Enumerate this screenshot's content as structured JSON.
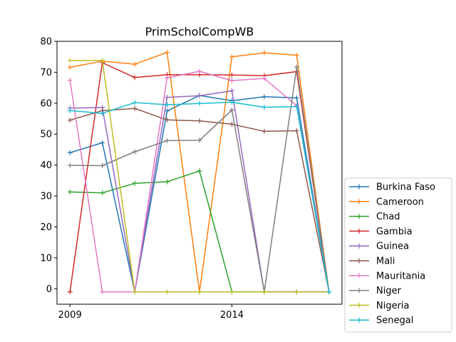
{
  "chart_data": {
    "type": "line",
    "title": "PrimScholCompWB",
    "xlabel": "",
    "ylabel": "",
    "x": [
      2009,
      2010,
      2011,
      2012,
      2013,
      2014,
      2015,
      2016,
      2017
    ],
    "xlim": [
      2008.6,
      2017.4
    ],
    "ylim": [
      -5,
      80
    ],
    "xticks": [
      2009,
      2014
    ],
    "yticks": [
      0,
      10,
      20,
      30,
      40,
      50,
      60,
      70,
      80
    ],
    "grid": false,
    "legend_position": "outside-right-bottom",
    "marker": "+",
    "series": [
      {
        "name": "Burkina Faso",
        "color": "#1f77b4",
        "values": [
          44.0,
          47.2,
          -1.0,
          57.5,
          62.5,
          60.8,
          62.1,
          61.7,
          -1.0
        ]
      },
      {
        "name": "Cameroon",
        "color": "#ff7f0e",
        "values": [
          71.6,
          73.6,
          72.6,
          76.4,
          -1.0,
          75.0,
          76.3,
          75.5,
          -1.0
        ]
      },
      {
        "name": "Chad",
        "color": "#2ca02c",
        "values": [
          31.3,
          31.0,
          34.1,
          34.6,
          38.1,
          -1.0,
          -1.0,
          -1.0,
          -1.0
        ]
      },
      {
        "name": "Gambia",
        "color": "#d62728",
        "values": [
          -1.0,
          73.1,
          68.3,
          69.2,
          69.2,
          69.1,
          68.9,
          70.2,
          -1.0
        ]
      },
      {
        "name": "Guinea",
        "color": "#9467bd",
        "values": [
          58.4,
          58.6,
          -1.0,
          61.9,
          62.4,
          64.0,
          -1.0,
          -1.0,
          -1.0
        ]
      },
      {
        "name": "Mali",
        "color": "#8c564b",
        "values": [
          54.5,
          57.6,
          58.3,
          54.6,
          54.3,
          53.2,
          50.9,
          51.1,
          -1.0
        ]
      },
      {
        "name": "Mauritania",
        "color": "#e377c2",
        "values": [
          67.4,
          -1.0,
          -1.0,
          68.2,
          70.3,
          67.3,
          68.0,
          59.2,
          -1.0
        ]
      },
      {
        "name": "Niger",
        "color": "#7f7f7f",
        "values": [
          39.9,
          39.8,
          44.3,
          47.9,
          48.0,
          57.8,
          -1.0,
          71.7,
          -1.0
        ]
      },
      {
        "name": "Nigeria",
        "color": "#bcbd22",
        "values": [
          73.8,
          73.8,
          -1.0,
          -1.0,
          -1.0,
          -1.0,
          -1.0,
          -1.0,
          -1.0
        ]
      },
      {
        "name": "Senegal",
        "color": "#17becf",
        "values": [
          57.6,
          56.7,
          60.2,
          59.5,
          59.9,
          60.3,
          58.7,
          58.9,
          -1.0
        ]
      }
    ]
  }
}
